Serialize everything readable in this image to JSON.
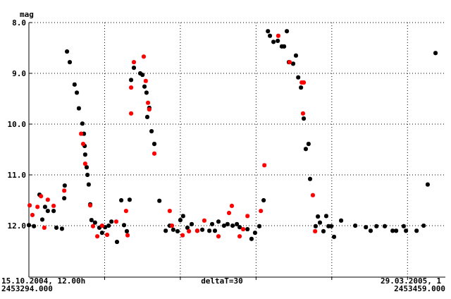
{
  "chart_data": {
    "type": "scatter",
    "ylabel": "mag",
    "x_start_date": "15.10.2004, 12.00h",
    "x_start_jd": "2453294.000",
    "x_end_date": "29.03.2005, 1",
    "x_end_jd": "2453459.000",
    "x_step_label": "deltaT=30",
    "xlim": [
      2453294,
      2453459
    ],
    "xticks": [
      2453324,
      2453354,
      2453384,
      2453414,
      2453444
    ],
    "ylim": [
      13,
      8
    ],
    "yticks": [
      {
        "value": 8,
        "label": "8.0"
      },
      {
        "value": 9,
        "label": "9.0"
      },
      {
        "value": 10,
        "label": "10.0"
      },
      {
        "value": 11,
        "label": "11.0"
      },
      {
        "value": 12,
        "label": "12.0"
      }
    ],
    "grid": true,
    "series": [
      {
        "color": "#000000",
        "x": [
          2453294.0,
          2453296.0,
          2453298.2,
          2453299.3,
          2453300.4,
          2453301.5,
          2453303.8,
          2453304.9,
          2453307.1,
          2453308.0,
          2453308.2,
          2453309.1,
          2453310.2,
          2453312.1,
          2453313.0,
          2453313.8,
          2453315.2,
          2453315.8,
          2453316.1,
          2453316.3,
          2453316.9,
          2453317.2,
          2453317.7,
          2453318.3,
          2453318.8,
          2453320.2,
          2453321.9,
          2453323.0,
          2453324.2,
          2453325.6,
          2453326.7,
          2453328.9,
          2453330.6,
          2453331.7,
          2453332.8,
          2453333.9,
          2453334.5,
          2453335.6,
          2453338.1,
          2453339.0,
          2453339.8,
          2453340.6,
          2453340.9,
          2453341.7,
          2453342.6,
          2453343.7,
          2453345.7,
          2453348.2,
          2453349.8,
          2453351.2,
          2453352.9,
          2453354.0,
          2453355.1,
          2453356.8,
          2453358.5,
          2453360.7,
          2453362.7,
          2453365.5,
          2453366.6,
          2453367.7,
          2453369.1,
          2453371.3,
          2453372.7,
          2453374.7,
          2453376.4,
          2453377.5,
          2453380.6,
          2453382.2,
          2453383.6,
          2453385.3,
          2453387.0,
          2453388.7,
          2453389.5,
          2453390.9,
          2453392.6,
          2453394.2,
          2453395.1,
          2453396.2,
          2453397.0,
          2453398.7,
          2453399.8,
          2453400.7,
          2453401.8,
          2453402.9,
          2453403.7,
          2453404.8,
          2453405.4,
          2453407.6,
          2453408.5,
          2453409.3,
          2453410.7,
          2453411.8,
          2453412.7,
          2453413.8,
          2453414.9,
          2453417.7,
          2453423.3,
          2453427.5,
          2453429.4,
          2453431.7,
          2453435.0,
          2453438.1,
          2453439.5,
          2453442.5,
          2453443.4,
          2453447.6,
          2453450.4,
          2453452.0,
          2453455.1
        ],
        "values": [
          11.99,
          12.01,
          11.39,
          11.88,
          11.63,
          11.71,
          11.71,
          12.04,
          12.06,
          11.46,
          11.21,
          8.57,
          8.78,
          9.22,
          9.38,
          9.69,
          9.99,
          10.19,
          10.43,
          10.6,
          10.85,
          11.0,
          11.19,
          11.58,
          11.89,
          11.94,
          12.04,
          12.14,
          12.03,
          12.0,
          11.92,
          12.32,
          11.5,
          11.99,
          12.11,
          11.49,
          9.13,
          8.89,
          9.0,
          9.03,
          9.26,
          9.38,
          9.86,
          9.68,
          10.14,
          10.39,
          11.51,
          12.1,
          12.0,
          12.08,
          12.11,
          11.89,
          11.81,
          12.04,
          11.97,
          12.1,
          12.08,
          12.1,
          11.97,
          12.1,
          11.92,
          12.0,
          11.97,
          12.0,
          11.97,
          12.03,
          12.07,
          12.26,
          12.14,
          12.01,
          11.5,
          8.17,
          8.26,
          8.38,
          8.36,
          8.47,
          8.47,
          8.17,
          8.78,
          8.81,
          8.65,
          9.08,
          9.28,
          9.89,
          10.49,
          10.39,
          11.08,
          12.01,
          11.82,
          11.94,
          12.11,
          11.81,
          12.01,
          12.01,
          12.22,
          11.9,
          12.0,
          12.03,
          12.1,
          12.01,
          12.01,
          12.1,
          12.1,
          12.01,
          12.1,
          12.1,
          12.0,
          11.19,
          8.6
        ]
      },
      {
        "color": "#ff0000",
        "x": [
          2453294.3,
          2453295.4,
          2453297.4,
          2453298.8,
          2453300.1,
          2453301.5,
          2453303.8,
          2453308.0,
          2453314.7,
          2453315.5,
          2453316.3,
          2453318.3,
          2453319.4,
          2453321.1,
          2453323.0,
          2453325.0,
          2453328.6,
          2453332.5,
          2453333.1,
          2453334.5,
          2453334.5,
          2453335.6,
          2453339.5,
          2453340.3,
          2453341.2,
          2453341.7,
          2453343.7,
          2453349.8,
          2453350.7,
          2453354.9,
          2453357.4,
          2453360.7,
          2453363.5,
          2453369.1,
          2453373.3,
          2453374.4,
          2453377.5,
          2453378.9,
          2453380.6,
          2453385.9,
          2453387.3,
          2453392.8,
          2453397.3,
          2453402.1,
          2453402.9,
          2453402.6,
          2453406.5,
          2453407.4
        ],
        "values": [
          11.6,
          11.79,
          11.63,
          11.42,
          12.04,
          11.49,
          11.61,
          11.31,
          10.19,
          10.39,
          10.78,
          11.6,
          12.01,
          12.21,
          12.0,
          12.18,
          11.92,
          11.71,
          12.19,
          9.79,
          9.28,
          8.78,
          8.67,
          9.15,
          9.58,
          9.71,
          10.58,
          11.71,
          12.0,
          12.19,
          12.11,
          12.1,
          11.9,
          12.21,
          11.75,
          11.61,
          12.21,
          12.07,
          11.81,
          11.71,
          10.81,
          8.26,
          8.78,
          9.18,
          9.18,
          9.79,
          11.4,
          12.11
        ]
      }
    ]
  }
}
